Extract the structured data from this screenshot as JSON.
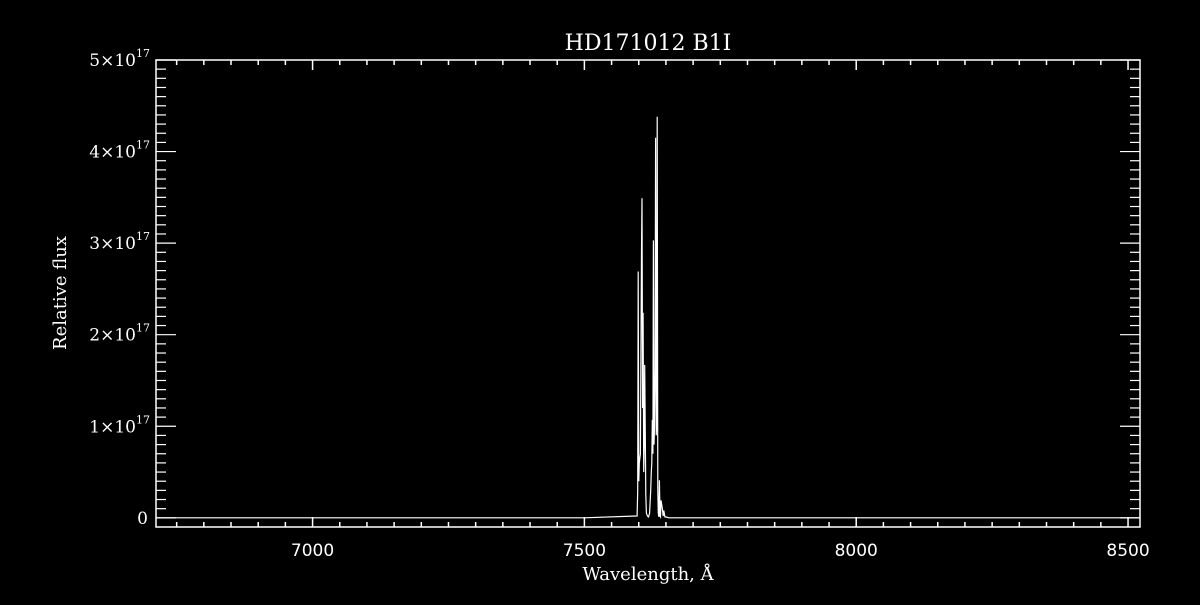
{
  "chart_data": {
    "type": "line",
    "title": "HD171012  B1I",
    "xlabel": "Wavelength, Å",
    "ylabel": "Relative flux",
    "xlim": [
      6712,
      8522
    ],
    "ylim": [
      -1e+16,
      5e+17
    ],
    "xticks": [
      7000,
      7500,
      8000,
      8500
    ],
    "xtick_labels": [
      "7000",
      "7500",
      "8000",
      "8500"
    ],
    "yticks": [
      0,
      1e+17,
      2e+17,
      3e+17,
      4e+17,
      5e+17
    ],
    "ytick_labels": [
      {
        "mant": "0",
        "exp": ""
      },
      {
        "mant": "1×10",
        "exp": "17"
      },
      {
        "mant": "2×10",
        "exp": "17"
      },
      {
        "mant": "3×10",
        "exp": "17"
      },
      {
        "mant": "4×10",
        "exp": "17"
      },
      {
        "mant": "5×10",
        "exp": "17"
      }
    ],
    "grid": false,
    "colors": {
      "background": "#000000",
      "foreground": "#ffffff"
    },
    "series": [
      {
        "x": [
          6712,
          7000,
          7500,
          7597,
          7598,
          7599,
          7600,
          7601,
          7603,
          7605,
          7606,
          7607,
          7608,
          7609,
          7610,
          7611,
          7612,
          7613,
          7614,
          7616,
          7618,
          7620,
          7622,
          7623,
          7624,
          7625,
          7626,
          7627,
          7628,
          7629,
          7630,
          7631,
          7632,
          7633,
          7634,
          7635,
          7636,
          7637,
          7638,
          7639,
          7640,
          7641,
          7643,
          7645,
          7646,
          7648,
          7650,
          7655,
          7660,
          8000,
          8522
        ],
        "y": [
          0,
          0,
          0,
          2000000000000000.0,
          3e+16,
          2.69e+17,
          4e+16,
          6e+16,
          7e+16,
          2.9e+17,
          3.49e+17,
          1.2e+17,
          2.24e+17,
          5e+16,
          8e+16,
          1.67e+17,
          9e+16,
          2.5e+16,
          5000000000000000.0,
          2000000000000000.0,
          1000000000000000.0,
          5000000000000000.0,
          3e+16,
          5e+16,
          6e+16,
          1.07e+17,
          7e+16,
          3.03e+17,
          8e+16,
          1e+17,
          1.64e+17,
          4.15e+17,
          9e+16,
          1e+17,
          4.38e+17,
          3e+16,
          5000000000000000.0,
          1000000000000000.0,
          4.1e+16,
          2000000000000000.0,
          1000000000000000.0,
          1.9e+16,
          1.2e+16,
          2000000000000000.0,
          8000000000000000.0,
          1000000000000000.0,
          1000000000000000.0,
          0,
          0,
          0,
          0
        ]
      }
    ]
  }
}
